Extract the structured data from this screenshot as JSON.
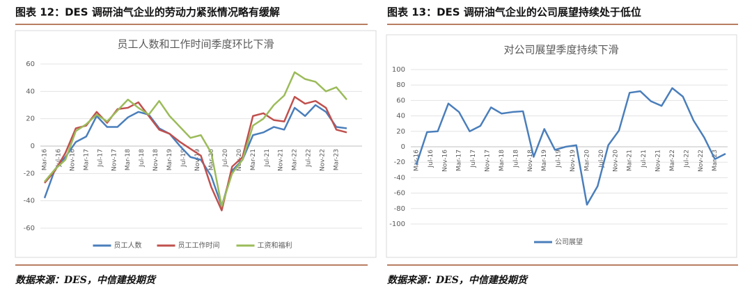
{
  "captions": [
    "图表 12：DES 调研油气企业的劳动力紧张情况略有缓解",
    "图表 13：DES 调研油气企业的公司展望持续处于低位"
  ],
  "sources": [
    "数据来源：DES，中信建投期货",
    "数据来源：DES，中信建投期货"
  ],
  "chart_data": [
    {
      "type": "line",
      "title": "员工人数和工作时间季度环比下滑",
      "x": [
        "2016-03",
        "2016-06",
        "2016-09",
        "2016-12",
        "2017-03",
        "2017-06",
        "2017-09",
        "2017-12",
        "2018-03",
        "2018-06",
        "2018-09",
        "2018-12",
        "2019-03",
        "2019-06",
        "2019-09",
        "2019-12",
        "2020-03",
        "2020-06",
        "2020-09",
        "2020-12",
        "2021-03",
        "2021-06",
        "2021-09",
        "2021-12",
        "2022-03",
        "2022-06",
        "2022-09",
        "2022-12",
        "2023-03",
        "2023-06"
      ],
      "xlim": [
        "2016-03",
        "2023-06"
      ],
      "xticks": [
        {
          "value": "2016-03",
          "label": "Mar-16"
        },
        {
          "value": "2016-07",
          "label": "Jul-16"
        },
        {
          "value": "2016-11",
          "label": "Nov-16"
        },
        {
          "value": "2017-03",
          "label": "Mar-17"
        },
        {
          "value": "2017-07",
          "label": "Jul-17"
        },
        {
          "value": "2017-11",
          "label": "Nov-17"
        },
        {
          "value": "2018-03",
          "label": "Mar-18"
        },
        {
          "value": "2018-07",
          "label": "Jul-18"
        },
        {
          "value": "2018-11",
          "label": "Nov-18"
        },
        {
          "value": "2019-03",
          "label": "Mar-19"
        },
        {
          "value": "2019-07",
          "label": "Jul-19"
        },
        {
          "value": "2019-11",
          "label": "Nov-19"
        },
        {
          "value": "2020-03",
          "label": "Mar-20"
        },
        {
          "value": "2020-07",
          "label": "Jul-20"
        },
        {
          "value": "2020-11",
          "label": "Nov-20"
        },
        {
          "value": "2021-03",
          "label": "Mar-21"
        },
        {
          "value": "2021-07",
          "label": "Jul-21"
        },
        {
          "value": "2021-11",
          "label": "Nov-21"
        },
        {
          "value": "2022-03",
          "label": "Mar-22"
        },
        {
          "value": "2022-07",
          "label": "Jul-22"
        },
        {
          "value": "2022-11",
          "label": "Nov-22"
        },
        {
          "value": "2023-03",
          "label": "Mar-23"
        }
      ],
      "ylim": [
        -60,
        60
      ],
      "yticks": [
        -60,
        -40,
        -20,
        0,
        20,
        40,
        60
      ],
      "grid": true,
      "series": [
        {
          "name": "员工人数",
          "color": "#4a7ebb",
          "values": [
            -38,
            -17,
            -8,
            3,
            7,
            22,
            14,
            14,
            21,
            25,
            23,
            13,
            9,
            0,
            -8,
            -10,
            -22,
            -44,
            -18,
            -10,
            8,
            10,
            14,
            12,
            28,
            22,
            30,
            25,
            14,
            13
          ]
        },
        {
          "name": "员工工作时间",
          "color": "#c0504d",
          "values": [
            -27,
            -18,
            -5,
            13,
            15,
            25,
            17,
            27,
            28,
            32,
            22,
            12,
            9,
            3,
            -2,
            -7,
            -30,
            -47,
            -15,
            -8,
            22,
            24,
            19,
            18,
            36,
            31,
            33,
            28,
            12,
            10
          ]
        },
        {
          "name": "工资和福利",
          "color": "#9bbb59",
          "values": [
            -26,
            -17,
            -10,
            11,
            16,
            23,
            18,
            26,
            34,
            28,
            23,
            33,
            22,
            14,
            6,
            8,
            -5,
            -44,
            -20,
            -10,
            15,
            20,
            30,
            37,
            54,
            49,
            47,
            40,
            43,
            34
          ]
        }
      ]
    },
    {
      "type": "line",
      "title": "对公司展望季度持续下滑",
      "x": [
        "2016-03",
        "2016-06",
        "2016-09",
        "2016-12",
        "2017-03",
        "2017-06",
        "2017-09",
        "2017-12",
        "2018-03",
        "2018-06",
        "2018-09",
        "2018-12",
        "2019-03",
        "2019-06",
        "2019-09",
        "2019-12",
        "2020-03",
        "2020-06",
        "2020-09",
        "2020-12",
        "2021-03",
        "2021-06",
        "2021-09",
        "2021-12",
        "2022-03",
        "2022-06",
        "2022-09",
        "2022-12",
        "2023-03",
        "2023-06"
      ],
      "xlim": [
        "2016-03",
        "2023-06"
      ],
      "xticks": [
        {
          "value": "2016-03",
          "label": "Mar-16"
        },
        {
          "value": "2016-07",
          "label": "Jul-16"
        },
        {
          "value": "2016-11",
          "label": "Nov-16"
        },
        {
          "value": "2017-03",
          "label": "Mar-17"
        },
        {
          "value": "2017-07",
          "label": "Jul-17"
        },
        {
          "value": "2017-11",
          "label": "Nov-17"
        },
        {
          "value": "2018-03",
          "label": "Mar-18"
        },
        {
          "value": "2018-07",
          "label": "Jul-18"
        },
        {
          "value": "2018-11",
          "label": "Nov-18"
        },
        {
          "value": "2019-03",
          "label": "Mar-19"
        },
        {
          "value": "2019-07",
          "label": "Jul-19"
        },
        {
          "value": "2019-11",
          "label": "Nov-19"
        },
        {
          "value": "2020-03",
          "label": "Mar-20"
        },
        {
          "value": "2020-07",
          "label": "Jul-20"
        },
        {
          "value": "2020-11",
          "label": "Nov-20"
        },
        {
          "value": "2021-03",
          "label": "Mar-21"
        },
        {
          "value": "2021-07",
          "label": "Jul-21"
        },
        {
          "value": "2021-11",
          "label": "Nov-21"
        },
        {
          "value": "2022-03",
          "label": "Mar-22"
        },
        {
          "value": "2022-07",
          "label": "Jul-22"
        },
        {
          "value": "2022-11",
          "label": "Nov-22"
        },
        {
          "value": "2023-03",
          "label": "Mar-23"
        }
      ],
      "ylim": [
        -100,
        100
      ],
      "yticks": [
        -100,
        -80,
        -60,
        -40,
        -20,
        0,
        20,
        40,
        60,
        80,
        100
      ],
      "grid": true,
      "series": [
        {
          "name": "公司展望",
          "color": "#4a7ebb",
          "values": [
            -23,
            19,
            20,
            56,
            45,
            20,
            27,
            51,
            43,
            45,
            46,
            -13,
            23,
            -4,
            0,
            2,
            -75,
            -51,
            2,
            21,
            70,
            72,
            59,
            53,
            76,
            65,
            34,
            12,
            -16,
            -9
          ]
        }
      ]
    }
  ]
}
